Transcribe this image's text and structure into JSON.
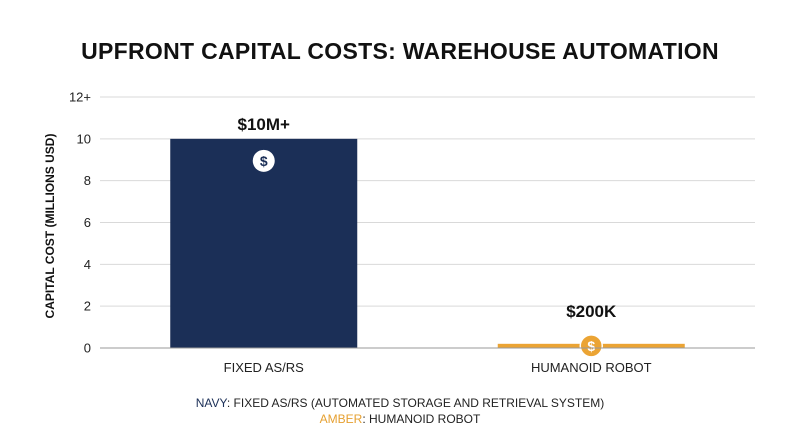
{
  "chart_data": {
    "type": "bar",
    "title": "UPFRONT CAPITAL COSTS: WAREHOUSE AUTOMATION",
    "ylabel": "CAPITAL COST (MILLIONS USD)",
    "xlabel": "",
    "ylim": [
      0,
      12
    ],
    "y_ticks": [
      {
        "value": 0,
        "label": "0"
      },
      {
        "value": 2,
        "label": "2"
      },
      {
        "value": 4,
        "label": "4"
      },
      {
        "value": 6,
        "label": "6"
      },
      {
        "value": 8,
        "label": "8"
      },
      {
        "value": 10,
        "label": "10"
      },
      {
        "value": 12,
        "label": "12+"
      }
    ],
    "grid": true,
    "categories": [
      "FIXED AS/RS",
      "HUMANOID ROBOT"
    ],
    "values": [
      10,
      0.2
    ],
    "data_labels": [
      "$10M+",
      "$200K"
    ],
    "colors": [
      "#1b2f57",
      "#eba434"
    ],
    "marker_icon": "dollar-coin-icon",
    "legend": [
      {
        "key": "NAVY",
        "text": ": FIXED AS/RS (AUTOMATED STORAGE AND RETRIEVAL SYSTEM)",
        "color": "#1b2f57"
      },
      {
        "key": "AMBER",
        "text": ": HUMANOID ROBOT",
        "color": "#e6a030"
      }
    ],
    "legend_position": "bottom"
  }
}
